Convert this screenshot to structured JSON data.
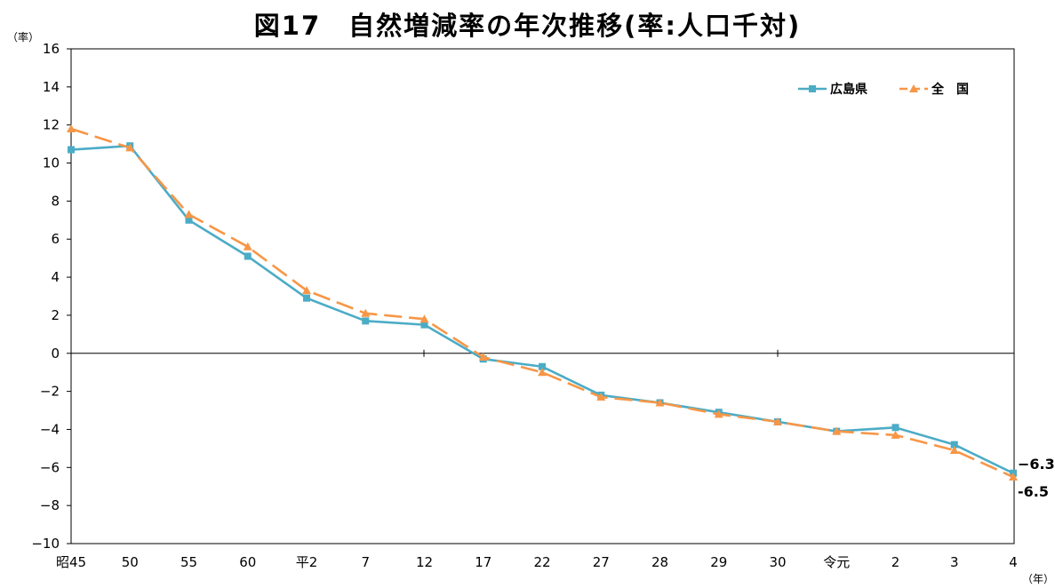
{
  "chart_data": {
    "type": "line",
    "title": "図17　自然増減率の年次推移(率:人口千対)",
    "y_unit_label": "（率）",
    "x_unit_label": "（年）",
    "categories": [
      "昭45",
      "50",
      "55",
      "60",
      "平2",
      "7",
      "12",
      "17",
      "22",
      "27",
      "28",
      "29",
      "30",
      "令元",
      "2",
      "3",
      "4"
    ],
    "ylim": [
      -10,
      16
    ],
    "yticks": [
      16,
      14,
      12,
      10,
      8,
      6,
      4,
      2,
      0,
      -2,
      -4,
      -6,
      -8,
      -10
    ],
    "ytick_labels": [
      "16",
      "14",
      "12",
      "10",
      "8",
      "6",
      "4",
      "2",
      "0",
      "−2",
      "−4",
      "−6",
      "−8",
      "−10"
    ],
    "legend_position": "top-right",
    "series": [
      {
        "name": "広島県",
        "color": "#4bacc6",
        "line_style": "solid",
        "marker": "square",
        "values": [
          10.7,
          10.9,
          7.0,
          5.1,
          2.9,
          1.7,
          1.5,
          -0.3,
          -0.7,
          -2.2,
          -2.6,
          -3.1,
          -3.6,
          -4.1,
          -3.9,
          -4.8,
          -6.3
        ]
      },
      {
        "name": "全　国",
        "color": "#f79646",
        "line_style": "dashed",
        "marker": "triangle",
        "values": [
          11.8,
          10.8,
          7.3,
          5.6,
          3.3,
          2.1,
          1.8,
          -0.2,
          -1.0,
          -2.3,
          -2.6,
          -3.2,
          -3.6,
          -4.1,
          -4.3,
          -5.1,
          -6.5
        ]
      }
    ],
    "end_labels": [
      {
        "series": 0,
        "text": "−6.3"
      },
      {
        "series": 1,
        "text": "-6.5"
      }
    ]
  }
}
